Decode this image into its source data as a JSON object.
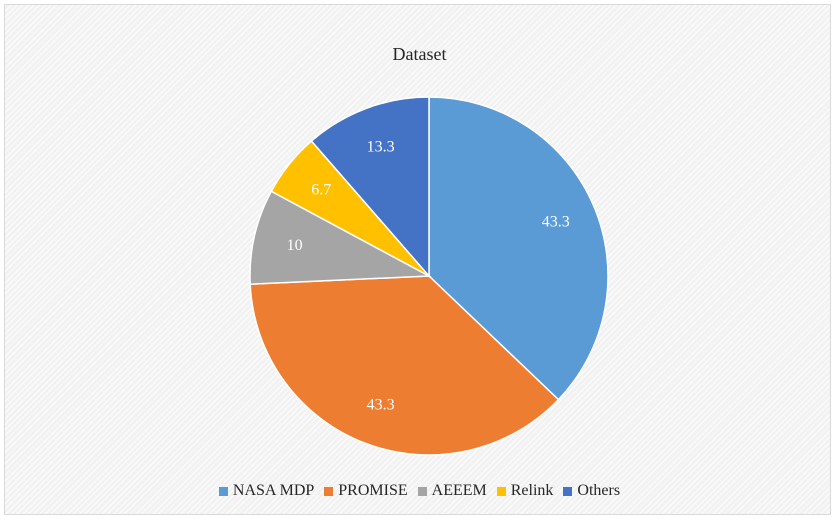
{
  "chart_data": {
    "type": "pie",
    "title": "Dataset",
    "legend_position": "bottom",
    "categories": [
      "NASA MDP",
      "PROMISE",
      "AEEEM",
      "Relink",
      "Others"
    ],
    "values": [
      43.3,
      43.3,
      10,
      6.7,
      13.3
    ],
    "labels": [
      "43.3",
      "43.3",
      "10",
      "6.7",
      "13.3"
    ],
    "colors": [
      "#5b9bd5",
      "#ed7d31",
      "#a5a5a5",
      "#ffc000",
      "#4472c4"
    ]
  }
}
